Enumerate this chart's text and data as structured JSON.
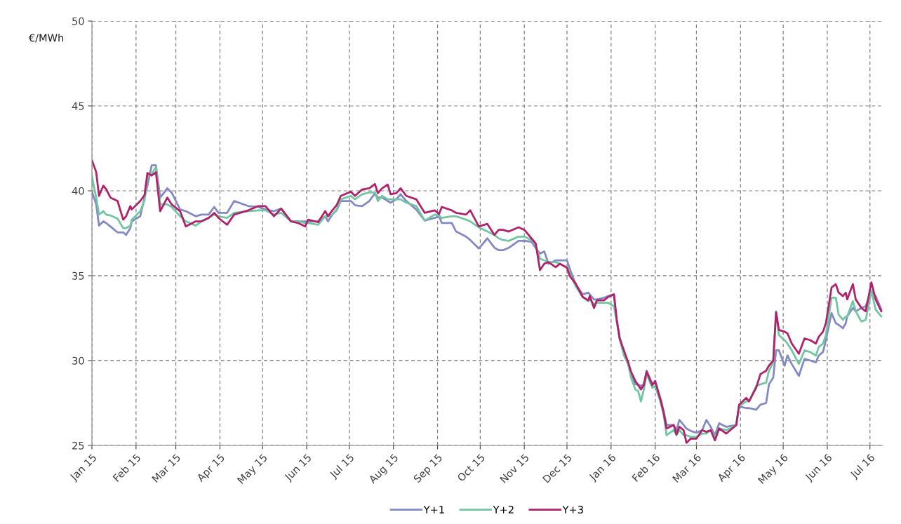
{
  "chart_data": {
    "type": "line",
    "ylabel": "€/MWh",
    "x": [
      "2015-01-01",
      "2015-01-04",
      "2015-01-06",
      "2015-01-09",
      "2015-01-11",
      "2015-01-14",
      "2015-01-19",
      "2015-01-23",
      "2015-01-25",
      "2015-01-28",
      "2015-01-29",
      "2015-02-04",
      "2015-02-07",
      "2015-02-09",
      "2015-02-12",
      "2015-02-15",
      "2015-02-18",
      "2015-02-23",
      "2015-02-26",
      "2015-03-04",
      "2015-03-08",
      "2015-03-15",
      "2015-03-19",
      "2015-03-24",
      "2015-03-28",
      "2015-03-31",
      "2015-04-06",
      "2015-04-11",
      "2015-04-21",
      "2015-04-28",
      "2015-05-03",
      "2015-05-09",
      "2015-05-14",
      "2015-05-21",
      "2015-05-26",
      "2015-05-31",
      "2015-06-02",
      "2015-06-09",
      "2015-06-14",
      "2015-06-16",
      "2015-06-19",
      "2015-06-22",
      "2015-06-25",
      "2015-07-02",
      "2015-07-05",
      "2015-07-10",
      "2015-07-15",
      "2015-07-19",
      "2015-07-21",
      "2015-07-24",
      "2015-07-28",
      "2015-07-30",
      "2015-08-03",
      "2015-08-06",
      "2015-08-10",
      "2015-08-17",
      "2015-08-23",
      "2015-08-30",
      "2015-09-02",
      "2015-09-04",
      "2015-09-11",
      "2015-09-14",
      "2015-09-21",
      "2015-09-24",
      "2015-09-30",
      "2015-10-06",
      "2015-10-11",
      "2015-10-14",
      "2015-10-17",
      "2015-10-21",
      "2015-10-28",
      "2015-11-01",
      "2015-11-06",
      "2015-11-09",
      "2015-11-12",
      "2015-11-15",
      "2015-11-18",
      "2015-11-23",
      "2015-11-26",
      "2015-12-01",
      "2015-12-03",
      "2015-12-07",
      "2015-12-12",
      "2015-12-16",
      "2015-12-17",
      "2015-12-20",
      "2015-12-22",
      "2015-12-27",
      "2015-12-30",
      "2016-01-03",
      "2016-01-05",
      "2016-01-07",
      "2016-01-10",
      "2016-01-13",
      "2016-01-15",
      "2016-01-18",
      "2016-01-20",
      "2016-01-22",
      "2016-01-24",
      "2016-01-26",
      "2016-01-30",
      "2016-02-01",
      "2016-02-05",
      "2016-02-07",
      "2016-02-09",
      "2016-02-14",
      "2016-02-16",
      "2016-02-18",
      "2016-02-21",
      "2016-02-23",
      "2016-02-26",
      "2016-03-01",
      "2016-03-05",
      "2016-03-08",
      "2016-03-11",
      "2016-03-14",
      "2016-03-17",
      "2016-03-22",
      "2016-03-29",
      "2016-03-31",
      "2016-04-05",
      "2016-04-07",
      "2016-04-12",
      "2016-04-15",
      "2016-04-19",
      "2016-04-21",
      "2016-04-24",
      "2016-04-26",
      "2016-04-28",
      "2016-05-02",
      "2016-05-04",
      "2016-05-07",
      "2016-05-12",
      "2016-05-16",
      "2016-05-20",
      "2016-05-24",
      "2016-05-26",
      "2016-05-29",
      "2016-05-31",
      "2016-06-04",
      "2016-06-07",
      "2016-06-09",
      "2016-06-12",
      "2016-06-14",
      "2016-06-15",
      "2016-06-19",
      "2016-06-21",
      "2016-06-25",
      "2016-06-28",
      "2016-07-02",
      "2016-07-05",
      "2016-07-09"
    ],
    "series": [
      {
        "name": "Y+1",
        "color": "#8389c3",
        "values": [
          39.95,
          39.2,
          37.95,
          38.2,
          38.1,
          37.9,
          37.55,
          37.55,
          37.4,
          37.8,
          38.2,
          38.5,
          39.6,
          40.3,
          41.5,
          41.5,
          39.6,
          40.15,
          39.9,
          38.9,
          38.8,
          38.5,
          38.6,
          38.6,
          39.05,
          38.7,
          38.7,
          39.4,
          39.1,
          39.05,
          38.9,
          38.8,
          38.95,
          38.2,
          38.2,
          38.2,
          38.2,
          38.2,
          38.5,
          38.2,
          38.6,
          38.85,
          39.4,
          39.4,
          39.15,
          39.1,
          39.4,
          39.85,
          39.6,
          39.6,
          39.4,
          39.3,
          39.5,
          39.8,
          39.4,
          38.9,
          38.25,
          38.4,
          38.5,
          38.1,
          38.1,
          37.6,
          37.3,
          37.1,
          36.6,
          37.2,
          36.65,
          36.5,
          36.5,
          36.64,
          37.05,
          37.05,
          37.0,
          36.64,
          36.3,
          36.43,
          35.7,
          35.9,
          35.9,
          35.9,
          35.4,
          34.5,
          33.9,
          34.0,
          33.9,
          33.6,
          33.6,
          33.7,
          33.8,
          33.9,
          32.3,
          31.4,
          30.4,
          29.8,
          29.2,
          28.6,
          28.6,
          28.5,
          28.6,
          29.4,
          28.6,
          28.7,
          27.7,
          27.0,
          26.2,
          26.2,
          25.9,
          26.5,
          26.2,
          26.0,
          25.85,
          25.75,
          25.9,
          26.5,
          26.1,
          25.6,
          26.3,
          26.1,
          26.2,
          27.3,
          27.2,
          27.2,
          27.1,
          27.4,
          27.5,
          28.6,
          29.0,
          30.6,
          30.6,
          29.7,
          30.3,
          29.8,
          29.1,
          30.1,
          30.0,
          29.9,
          30.3,
          30.5,
          31.2,
          32.8,
          32.2,
          32.1,
          31.9,
          32.2,
          32.6,
          33.1,
          32.9,
          33.1,
          33.2,
          34.1,
          33.8,
          33.0
        ]
      },
      {
        "name": "Y+2",
        "color": "#72c6a2",
        "values": [
          40.85,
          39.6,
          38.6,
          38.8,
          38.6,
          38.55,
          38.36,
          37.8,
          37.8,
          37.95,
          38.3,
          38.8,
          39.45,
          40.85,
          41.0,
          41.4,
          39.2,
          39.2,
          39.05,
          38.5,
          38.2,
          37.95,
          38.2,
          38.4,
          38.6,
          38.5,
          38.4,
          38.7,
          38.8,
          38.85,
          38.85,
          38.6,
          38.7,
          38.2,
          38.2,
          38.1,
          38.1,
          38.0,
          38.5,
          38.5,
          38.6,
          38.9,
          39.5,
          39.7,
          39.5,
          39.8,
          39.9,
          39.9,
          39.4,
          39.7,
          39.5,
          39.5,
          39.5,
          39.5,
          39.3,
          39.1,
          38.25,
          38.6,
          38.55,
          38.4,
          38.5,
          38.5,
          38.3,
          38.2,
          37.85,
          37.6,
          37.4,
          37.2,
          37.1,
          37.05,
          37.3,
          37.3,
          37.1,
          36.8,
          36.0,
          35.9,
          35.8,
          35.8,
          35.7,
          35.5,
          35.1,
          34.4,
          33.75,
          33.5,
          33.6,
          33.3,
          33.4,
          33.4,
          33.4,
          33.2,
          32.3,
          31.3,
          30.3,
          29.8,
          29.0,
          28.3,
          28.2,
          27.6,
          28.3,
          29.2,
          28.4,
          28.5,
          27.5,
          26.8,
          25.6,
          25.9,
          25.6,
          25.9,
          25.6,
          25.6,
          25.5,
          25.5,
          25.7,
          25.7,
          25.9,
          25.5,
          26.0,
          25.9,
          26.2,
          27.3,
          27.6,
          27.6,
          28.5,
          28.6,
          28.7,
          29.4,
          29.9,
          32.9,
          31.5,
          31.2,
          31.0,
          30.6,
          29.8,
          30.6,
          30.5,
          30.3,
          30.8,
          31.0,
          31.5,
          33.7,
          33.7,
          32.7,
          32.4,
          32.6,
          32.6,
          33.5,
          32.9,
          32.3,
          32.4,
          34.1,
          33.0,
          32.6
        ]
      },
      {
        "name": "Y+3",
        "color": "#b0236a",
        "values": [
          41.8,
          41.1,
          39.7,
          40.3,
          40.1,
          39.6,
          39.4,
          38.3,
          38.5,
          39.1,
          38.9,
          39.4,
          39.75,
          41.05,
          40.9,
          41.1,
          38.8,
          39.6,
          39.2,
          38.8,
          37.9,
          38.2,
          38.2,
          38.4,
          38.7,
          38.4,
          38.0,
          38.6,
          38.85,
          39.1,
          39.1,
          38.5,
          38.95,
          38.2,
          38.1,
          37.9,
          38.3,
          38.15,
          38.8,
          38.5,
          38.85,
          39.15,
          39.7,
          39.95,
          39.7,
          40.08,
          40.15,
          40.4,
          39.86,
          40.15,
          40.36,
          39.8,
          39.86,
          40.15,
          39.7,
          39.5,
          38.7,
          38.85,
          38.63,
          39.05,
          38.85,
          38.7,
          38.6,
          38.85,
          37.9,
          38.05,
          37.4,
          37.7,
          37.7,
          37.6,
          37.85,
          37.7,
          37.2,
          36.9,
          35.33,
          35.7,
          35.8,
          35.5,
          35.7,
          35.46,
          34.97,
          34.55,
          33.75,
          33.55,
          33.8,
          33.1,
          33.55,
          33.55,
          33.75,
          33.9,
          32.4,
          31.3,
          30.6,
          29.9,
          29.35,
          28.8,
          28.55,
          28.3,
          28.55,
          29.35,
          28.55,
          28.8,
          27.6,
          26.9,
          26.0,
          26.2,
          25.65,
          26.1,
          25.9,
          25.15,
          25.4,
          25.4,
          25.9,
          25.8,
          25.9,
          25.3,
          26.0,
          25.7,
          26.2,
          27.4,
          27.8,
          27.6,
          28.4,
          29.2,
          29.4,
          29.7,
          30.0,
          32.85,
          31.8,
          31.7,
          31.6,
          31.0,
          30.4,
          31.3,
          31.2,
          31.0,
          31.4,
          31.7,
          32.2,
          34.3,
          34.5,
          34.0,
          33.8,
          34.0,
          33.6,
          34.5,
          33.6,
          33.1,
          32.9,
          34.6,
          33.6,
          32.9
        ]
      }
    ],
    "xlim": [
      "2015-01-01",
      "2016-07-10"
    ],
    "xticks": [
      {
        "value": "2015-01-01",
        "label": "Jan 15"
      },
      {
        "value": "2015-02-01",
        "label": "Feb 15"
      },
      {
        "value": "2015-03-01",
        "label": "Mar 15"
      },
      {
        "value": "2015-04-01",
        "label": "Apr 15"
      },
      {
        "value": "2015-05-01",
        "label": "May 15"
      },
      {
        "value": "2015-06-01",
        "label": "Jun 15"
      },
      {
        "value": "2015-07-01",
        "label": "Jul 15"
      },
      {
        "value": "2015-08-01",
        "label": "Aug 15"
      },
      {
        "value": "2015-09-01",
        "label": "Sep 15"
      },
      {
        "value": "2015-10-01",
        "label": "Oct 15"
      },
      {
        "value": "2015-11-01",
        "label": "Nov 15"
      },
      {
        "value": "2015-12-01",
        "label": "Dec 15"
      },
      {
        "value": "2016-01-01",
        "label": "Jan 16"
      },
      {
        "value": "2016-02-01",
        "label": "Feb 16"
      },
      {
        "value": "2016-03-01",
        "label": "Mar 16"
      },
      {
        "value": "2016-04-01",
        "label": "Apr 16"
      },
      {
        "value": "2016-05-01",
        "label": "May 16"
      },
      {
        "value": "2016-06-01",
        "label": "Jun 16"
      },
      {
        "value": "2016-07-01",
        "label": "Jul 16"
      }
    ],
    "ylim": [
      25,
      50
    ],
    "yticks": [
      25,
      30,
      35,
      40,
      45,
      50
    ],
    "grid": true,
    "legend": "bottom",
    "marker": "none",
    "line_style": "solid"
  }
}
